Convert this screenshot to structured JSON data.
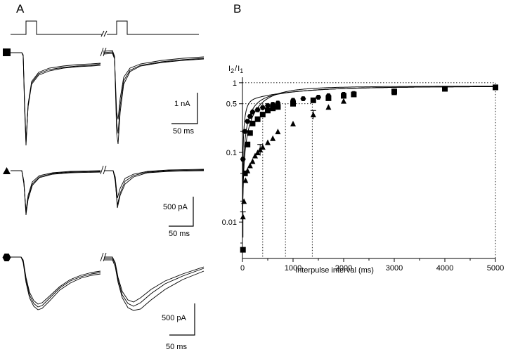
{
  "panels": {
    "left_label": "A",
    "right_label": "B"
  },
  "panel_a": {
    "scalebars": [
      {
        "y_text": "1 nA",
        "x_text": "50 ms"
      },
      {
        "y_text": "500 pA",
        "x_text": "50 ms"
      },
      {
        "y_text": "500 pA",
        "x_text": "50 ms"
      }
    ],
    "row_markers": [
      "square",
      "triangle",
      "hexagon"
    ]
  },
  "chart_data": {
    "type": "scatter",
    "title": "",
    "xlabel": "Interpulse interval (ms)",
    "ylabel_main": "I",
    "ylabel_num_sub": "2",
    "ylabel_den_sub": "1",
    "ylabel_sep": "/",
    "xlim": [
      0,
      5000
    ],
    "ylim": [
      0.003,
      1.2
    ],
    "yscale": "log",
    "xticks": [
      0,
      1000,
      2000,
      3000,
      4000,
      5000
    ],
    "xtick_labels": [
      "0",
      "1000",
      "2000",
      "3000",
      "4000",
      "5000"
    ],
    "yticks": [
      0.01,
      0.1,
      0.5,
      1
    ],
    "ytick_labels": [
      "0.01",
      "0.1",
      "0.5",
      "1"
    ],
    "reference_lines": {
      "y_levels": [
        1,
        0.5
      ],
      "x_half_times": [
        400,
        850,
        1380
      ]
    },
    "series": [
      {
        "marker": "hexagon",
        "x": [
          10,
          50,
          100,
          150,
          200,
          300,
          400,
          500,
          600,
          700,
          1000,
          1200,
          1500,
          1700,
          2000,
          2200,
          3000,
          4000,
          5000
        ],
        "y": [
          0.08,
          0.2,
          0.28,
          0.33,
          0.38,
          0.41,
          0.44,
          0.47,
          0.49,
          0.51,
          0.56,
          0.59,
          0.62,
          0.65,
          0.68,
          0.7,
          0.76,
          0.82,
          0.86
        ]
      },
      {
        "marker": "square",
        "x": [
          10,
          50,
          100,
          150,
          200,
          300,
          400,
          500,
          600,
          700,
          1000,
          1400,
          1700,
          2000,
          2200,
          3000,
          4000,
          5000
        ],
        "y": [
          0.004,
          0.05,
          0.13,
          0.19,
          0.26,
          0.3,
          0.35,
          0.4,
          0.43,
          0.45,
          0.5,
          0.56,
          0.6,
          0.65,
          0.68,
          0.75,
          0.82,
          0.86
        ]
      },
      {
        "marker": "triangle",
        "x": [
          10,
          30,
          60,
          100,
          150,
          200,
          250,
          300,
          350,
          400,
          500,
          600,
          700,
          1000,
          1400,
          1700,
          2000,
          3000,
          4000,
          5000
        ],
        "y": [
          0.012,
          0.02,
          0.04,
          0.055,
          0.065,
          0.075,
          0.09,
          0.1,
          0.11,
          0.12,
          0.14,
          0.16,
          0.2,
          0.26,
          0.35,
          0.45,
          0.55,
          0.73,
          0.82,
          0.86
        ]
      }
    ],
    "curves": [
      {
        "tau1": 60,
        "tau2": 1100,
        "a": 0.4,
        "scale": 0.88
      },
      {
        "tau1": 180,
        "tau2": 1100,
        "a": 0.4,
        "scale": 0.88
      },
      {
        "tau1": 400,
        "tau2": 1700,
        "a": 0.12,
        "scale": 0.9
      }
    ]
  }
}
